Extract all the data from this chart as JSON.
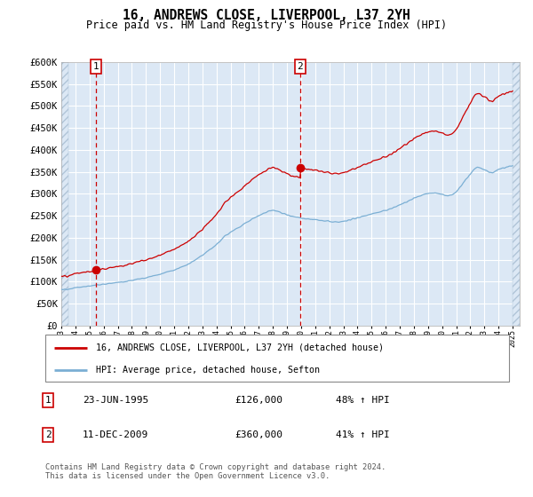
{
  "title": "16, ANDREWS CLOSE, LIVERPOOL, L37 2YH",
  "subtitle": "Price paid vs. HM Land Registry's House Price Index (HPI)",
  "ylim": [
    0,
    600000
  ],
  "yticks": [
    0,
    50000,
    100000,
    150000,
    200000,
    250000,
    300000,
    350000,
    400000,
    450000,
    500000,
    550000,
    600000
  ],
  "xlim_start": 1993.0,
  "xlim_end": 2025.5,
  "background_color": "#ffffff",
  "plot_bg_color": "#dce8f5",
  "grid_color": "#ffffff",
  "sale1_date": 1995.47,
  "sale1_price": 126000,
  "sale1_label": "1",
  "sale2_date": 2009.94,
  "sale2_price": 360000,
  "sale2_label": "2",
  "legend_line1": "16, ANDREWS CLOSE, LIVERPOOL, L37 2YH (detached house)",
  "legend_line2": "HPI: Average price, detached house, Sefton",
  "table_row1": [
    "1",
    "23-JUN-1995",
    "£126,000",
    "48% ↑ HPI"
  ],
  "table_row2": [
    "2",
    "11-DEC-2009",
    "£360,000",
    "41% ↑ HPI"
  ],
  "footnote": "Contains HM Land Registry data © Crown copyright and database right 2024.\nThis data is licensed under the Open Government Licence v3.0.",
  "sale_color": "#cc0000",
  "hpi_color": "#7bafd4",
  "dashed_line_color": "#cc0000",
  "hpi_anchor_years": [
    1993,
    1993.5,
    1994,
    1994.5,
    1995,
    1995.5,
    1996,
    1996.5,
    1997,
    1997.5,
    1998,
    1998.5,
    1999,
    1999.5,
    2000,
    2000.5,
    2001,
    2001.5,
    2002,
    2002.5,
    2003,
    2003.5,
    2004,
    2004.5,
    2005,
    2005.5,
    2006,
    2006.5,
    2007,
    2007.5,
    2008,
    2008.5,
    2009,
    2009.5,
    2010,
    2010.5,
    2011,
    2011.5,
    2012,
    2012.5,
    2013,
    2013.5,
    2014,
    2014.5,
    2015,
    2015.5,
    2016,
    2016.5,
    2017,
    2017.5,
    2018,
    2018.5,
    2019,
    2019.5,
    2020,
    2020.5,
    2021,
    2021.5,
    2022,
    2022.5,
    2023,
    2023.5,
    2024,
    2024.5,
    2025
  ],
  "hpi_anchor_prices": [
    82000,
    83000,
    86000,
    88000,
    90000,
    92000,
    94000,
    96000,
    98000,
    100000,
    103000,
    106000,
    109000,
    113000,
    117000,
    122000,
    127000,
    133000,
    140000,
    150000,
    160000,
    172000,
    185000,
    200000,
    213000,
    222000,
    232000,
    242000,
    250000,
    258000,
    262000,
    258000,
    252000,
    248000,
    245000,
    243000,
    241000,
    239000,
    237000,
    236000,
    238000,
    241000,
    245000,
    250000,
    254000,
    258000,
    262000,
    268000,
    275000,
    282000,
    290000,
    296000,
    300000,
    302000,
    298000,
    296000,
    305000,
    325000,
    345000,
    360000,
    355000,
    348000,
    355000,
    360000,
    365000
  ],
  "noise_seed": 17
}
